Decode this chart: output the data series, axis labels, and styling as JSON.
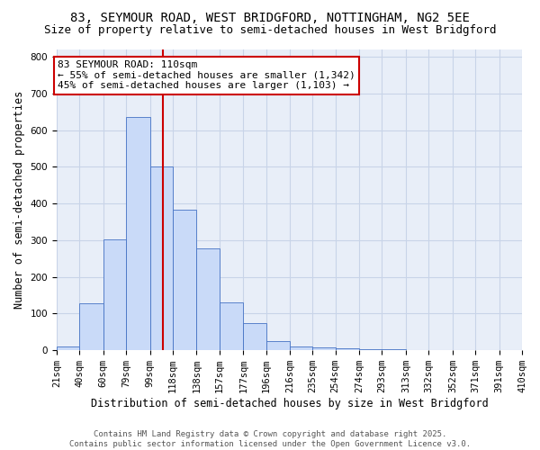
{
  "title_line1": "83, SEYMOUR ROAD, WEST BRIDGFORD, NOTTINGHAM, NG2 5EE",
  "title_line2": "Size of property relative to semi-detached houses in West Bridgford",
  "xlabel": "Distribution of semi-detached houses by size in West Bridgford",
  "ylabel": "Number of semi-detached properties",
  "bin_labels": [
    "21sqm",
    "40sqm",
    "60sqm",
    "79sqm",
    "99sqm",
    "118sqm",
    "138sqm",
    "157sqm",
    "177sqm",
    "196sqm",
    "216sqm",
    "235sqm",
    "254sqm",
    "274sqm",
    "293sqm",
    "313sqm",
    "332sqm",
    "352sqm",
    "371sqm",
    "391sqm",
    "410sqm"
  ],
  "bin_edges": [
    21,
    40,
    60,
    79,
    99,
    118,
    138,
    157,
    177,
    196,
    216,
    235,
    254,
    274,
    293,
    313,
    332,
    352,
    371,
    391,
    410
  ],
  "bar_heights": [
    10,
    127,
    302,
    635,
    502,
    384,
    277,
    131,
    73,
    25,
    11,
    8,
    5,
    3,
    2,
    0,
    0,
    0,
    0,
    0
  ],
  "bar_color": "#c9daf8",
  "bar_edge_color": "#4472c4",
  "property_size": 110,
  "vline_color": "#cc0000",
  "annotation_text": "83 SEYMOUR ROAD: 110sqm\n← 55% of semi-detached houses are smaller (1,342)\n45% of semi-detached houses are larger (1,103) →",
  "annotation_box_color": "#ffffff",
  "annotation_border_color": "#cc0000",
  "footer_text": "Contains HM Land Registry data © Crown copyright and database right 2025.\nContains public sector information licensed under the Open Government Licence v3.0.",
  "ylim": [
    0,
    820
  ],
  "yticks": [
    0,
    100,
    200,
    300,
    400,
    500,
    600,
    700,
    800
  ],
  "bg_color": "#ffffff",
  "grid_color": "#c8d4e8",
  "title_fontsize": 10,
  "subtitle_fontsize": 9,
  "axis_label_fontsize": 8.5,
  "tick_fontsize": 7.5,
  "footer_fontsize": 6.5,
  "annot_fontsize": 8
}
